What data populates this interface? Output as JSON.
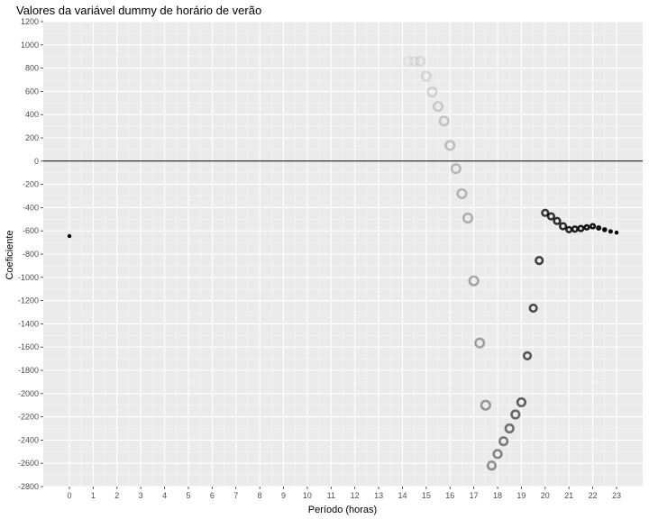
{
  "chart_data": {
    "type": "scatter",
    "title": "Valores da variável dummy de horário de verão",
    "xlabel": "Período (horas)",
    "ylabel": "Coeficiente",
    "xlim": [
      -1.1,
      24.1
    ],
    "ylim": [
      -2800,
      1200
    ],
    "x_ticks": [
      0,
      1,
      2,
      3,
      4,
      5,
      6,
      7,
      8,
      9,
      10,
      11,
      12,
      13,
      14,
      15,
      16,
      17,
      18,
      19,
      20,
      21,
      22,
      23
    ],
    "y_ticks": [
      -2800,
      -2600,
      -2400,
      -2200,
      -2000,
      -1800,
      -1600,
      -1400,
      -1200,
      -1000,
      -800,
      -600,
      -400,
      -200,
      0,
      200,
      400,
      600,
      800,
      1000,
      1200
    ],
    "hline_y": 0,
    "grid": true,
    "points": [
      {
        "x": 0,
        "y": -645,
        "opacity": 1.0,
        "size": 2.2
      },
      {
        "x": 14.25,
        "y": 860,
        "opacity": 0.05,
        "size": 6
      },
      {
        "x": 14.5,
        "y": 860,
        "opacity": 0.06,
        "size": 6
      },
      {
        "x": 14.75,
        "y": 860,
        "opacity": 0.08,
        "size": 6
      },
      {
        "x": 15.0,
        "y": 730,
        "opacity": 0.1,
        "size": 6
      },
      {
        "x": 15.25,
        "y": 595,
        "opacity": 0.12,
        "size": 6
      },
      {
        "x": 15.5,
        "y": 470,
        "opacity": 0.15,
        "size": 6
      },
      {
        "x": 15.75,
        "y": 345,
        "opacity": 0.17,
        "size": 6
      },
      {
        "x": 16.0,
        "y": 135,
        "opacity": 0.2,
        "size": 6
      },
      {
        "x": 16.25,
        "y": -65,
        "opacity": 0.22,
        "size": 6
      },
      {
        "x": 16.5,
        "y": -280,
        "opacity": 0.24,
        "size": 6
      },
      {
        "x": 16.75,
        "y": -490,
        "opacity": 0.26,
        "size": 6
      },
      {
        "x": 17.0,
        "y": -1030,
        "opacity": 0.3,
        "size": 6
      },
      {
        "x": 17.25,
        "y": -1565,
        "opacity": 0.32,
        "size": 6
      },
      {
        "x": 17.5,
        "y": -2100,
        "opacity": 0.36,
        "size": 6
      },
      {
        "x": 17.75,
        "y": -2620,
        "opacity": 0.4,
        "size": 5.5
      },
      {
        "x": 18.0,
        "y": -2520,
        "opacity": 0.44,
        "size": 5.5
      },
      {
        "x": 18.25,
        "y": -2410,
        "opacity": 0.48,
        "size": 5.5
      },
      {
        "x": 18.5,
        "y": -2300,
        "opacity": 0.52,
        "size": 5.5
      },
      {
        "x": 18.75,
        "y": -2180,
        "opacity": 0.56,
        "size": 5.5
      },
      {
        "x": 19.0,
        "y": -2075,
        "opacity": 0.6,
        "size": 5.5
      },
      {
        "x": 19.25,
        "y": -1675,
        "opacity": 0.64,
        "size": 5
      },
      {
        "x": 19.5,
        "y": -1265,
        "opacity": 0.68,
        "size": 5
      },
      {
        "x": 19.75,
        "y": -855,
        "opacity": 0.72,
        "size": 5
      },
      {
        "x": 20.0,
        "y": -445,
        "opacity": 0.76,
        "size": 4.5
      },
      {
        "x": 20.25,
        "y": -475,
        "opacity": 0.78,
        "size": 4.5
      },
      {
        "x": 20.5,
        "y": -515,
        "opacity": 0.8,
        "size": 4.5
      },
      {
        "x": 20.75,
        "y": -560,
        "opacity": 0.82,
        "size": 4.5
      },
      {
        "x": 21.0,
        "y": -590,
        "opacity": 0.84,
        "size": 4
      },
      {
        "x": 21.25,
        "y": -585,
        "opacity": 0.86,
        "size": 4
      },
      {
        "x": 21.5,
        "y": -580,
        "opacity": 0.88,
        "size": 4
      },
      {
        "x": 21.75,
        "y": -570,
        "opacity": 0.9,
        "size": 3.5
      },
      {
        "x": 22.0,
        "y": -560,
        "opacity": 0.92,
        "size": 3.5
      },
      {
        "x": 22.25,
        "y": -575,
        "opacity": 0.94,
        "size": 3
      },
      {
        "x": 22.5,
        "y": -590,
        "opacity": 0.96,
        "size": 2.8
      },
      {
        "x": 22.75,
        "y": -605,
        "opacity": 0.98,
        "size": 2.5
      },
      {
        "x": 23.0,
        "y": -615,
        "opacity": 1.0,
        "size": 2.2
      }
    ]
  }
}
